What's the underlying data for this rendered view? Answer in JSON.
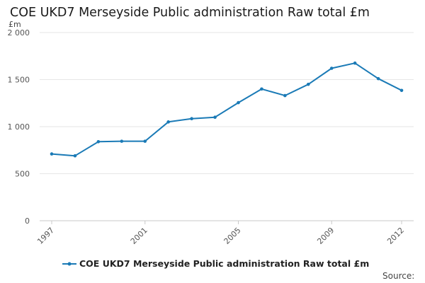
{
  "header": {
    "title": "COE UKD7 Merseyside Public administration Raw total £m"
  },
  "footer": {
    "source_label": "Source:"
  },
  "colors": {
    "series": "#1a7ab6",
    "grid": "#e6e6e6",
    "axis": "#c8c8c8",
    "tick_text": "#555555"
  },
  "chart_data": {
    "type": "line",
    "title": "COE UKD7 Merseyside Public administration Raw total £m",
    "ylabel": "£m",
    "xlabel": "",
    "ylim": [
      0,
      2000
    ],
    "yticks": [
      0,
      500,
      1000,
      1500,
      2000
    ],
    "ytick_labels": [
      "0",
      "500",
      "1 000",
      "1 500",
      "2 000"
    ],
    "xtick_labels": [
      "1997",
      "2001",
      "2005",
      "2009",
      "2012"
    ],
    "grid": true,
    "legend_position": "bottom",
    "x": [
      1997,
      1998,
      1999,
      2000,
      2001,
      2002,
      2003,
      2004,
      2005,
      2006,
      2007,
      2008,
      2009,
      2010,
      2011,
      2012
    ],
    "series": [
      {
        "name": "COE UKD7 Merseyside Public administration Raw total £m",
        "values": [
          710,
          690,
          840,
          845,
          845,
          1050,
          1085,
          1100,
          1255,
          1400,
          1330,
          1450,
          1620,
          1675,
          1510,
          1385
        ]
      }
    ]
  }
}
